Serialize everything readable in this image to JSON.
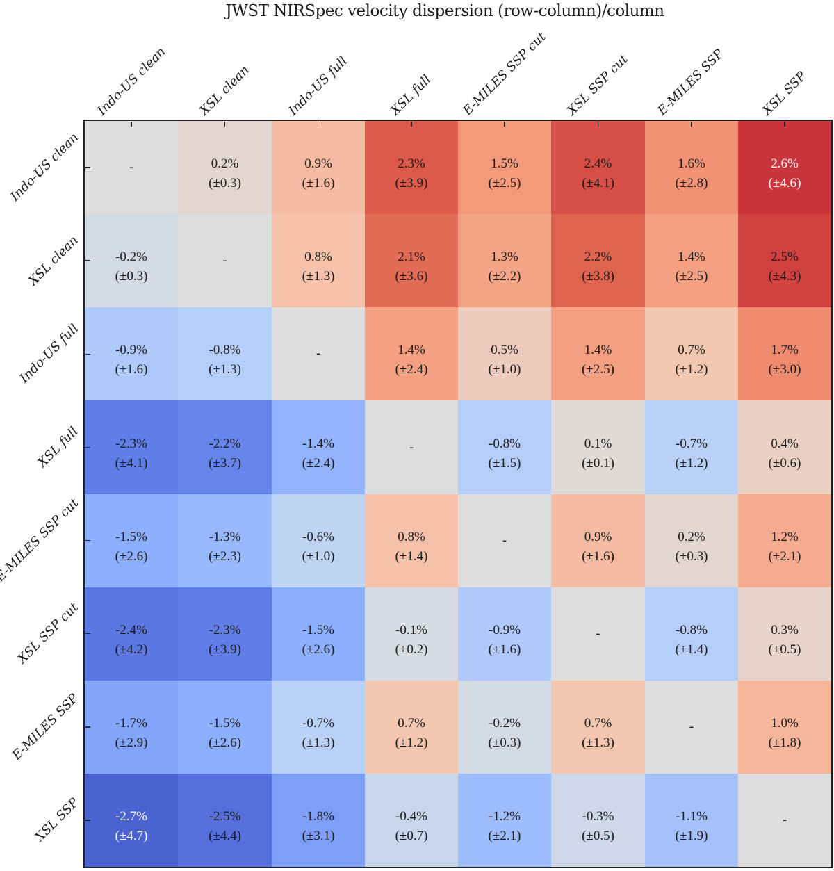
{
  "chart_data": {
    "type": "heatmap",
    "title": "JWST NIRSpec velocity dispersion (row-column)/column",
    "row_labels": [
      "Indo-US clean",
      "XSL clean",
      "Indo-US full",
      "XSL full",
      "E-MILES SSP cut",
      "XSL SSP cut",
      "E-MILES SSP",
      "XSL SSP"
    ],
    "col_labels": [
      "Indo-US clean",
      "XSL clean",
      "Indo-US full",
      "XSL full",
      "E-MILES SSP cut",
      "XSL SSP cut",
      "E-MILES SSP",
      "XSL SSP"
    ],
    "values": [
      [
        null,
        0.2,
        0.9,
        2.3,
        1.5,
        2.4,
        1.6,
        2.6
      ],
      [
        -0.2,
        null,
        0.8,
        2.1,
        1.3,
        2.2,
        1.4,
        2.5
      ],
      [
        -0.9,
        -0.8,
        null,
        1.4,
        0.5,
        1.4,
        0.7,
        1.7
      ],
      [
        -2.3,
        -2.2,
        -1.4,
        null,
        -0.8,
        0.1,
        -0.7,
        0.4
      ],
      [
        -1.5,
        -1.3,
        -0.6,
        0.8,
        null,
        0.9,
        0.2,
        1.2
      ],
      [
        -2.4,
        -2.3,
        -1.5,
        -0.1,
        -0.9,
        null,
        -0.8,
        0.3
      ],
      [
        -1.7,
        -1.5,
        -0.7,
        0.7,
        -0.2,
        0.7,
        null,
        1.0
      ],
      [
        -2.7,
        -2.5,
        -1.8,
        -0.4,
        -1.2,
        -0.3,
        -1.1,
        null
      ]
    ],
    "errors": [
      [
        null,
        0.3,
        1.6,
        3.9,
        2.5,
        4.1,
        2.8,
        4.6
      ],
      [
        0.3,
        null,
        1.3,
        3.6,
        2.2,
        3.8,
        2.5,
        4.3
      ],
      [
        1.6,
        1.3,
        null,
        2.4,
        1.0,
        2.5,
        1.2,
        3.0
      ],
      [
        4.1,
        3.7,
        2.4,
        null,
        1.5,
        0.1,
        1.2,
        0.6
      ],
      [
        2.6,
        2.3,
        1.0,
        1.4,
        null,
        1.6,
        0.3,
        2.1
      ],
      [
        4.2,
        3.9,
        2.6,
        0.2,
        1.6,
        null,
        1.4,
        0.5
      ],
      [
        2.9,
        2.6,
        1.3,
        1.2,
        0.3,
        1.3,
        null,
        1.8
      ],
      [
        4.7,
        4.4,
        3.1,
        0.7,
        2.1,
        0.5,
        1.9,
        null
      ]
    ],
    "value_suffix": "%",
    "error_prefix": "(±",
    "error_suffix": ")",
    "diagonal_marker": "-",
    "colormap": {
      "name": "coolwarm",
      "vmin": -3,
      "vmax": 3,
      "stops": [
        "#3b4cc0",
        "#6282ea",
        "#8db0fe",
        "#b8d0f9",
        "#dddddd",
        "#f5c4ad",
        "#f49a7b",
        "#de604d",
        "#b40426"
      ]
    },
    "white_text_threshold": 2.6,
    "text_color_dark": "#1c1c1c",
    "text_color_light": "#ffffff",
    "frame_color": "#222222",
    "background_color": "#ffffff",
    "grid": false,
    "legend": "none"
  }
}
